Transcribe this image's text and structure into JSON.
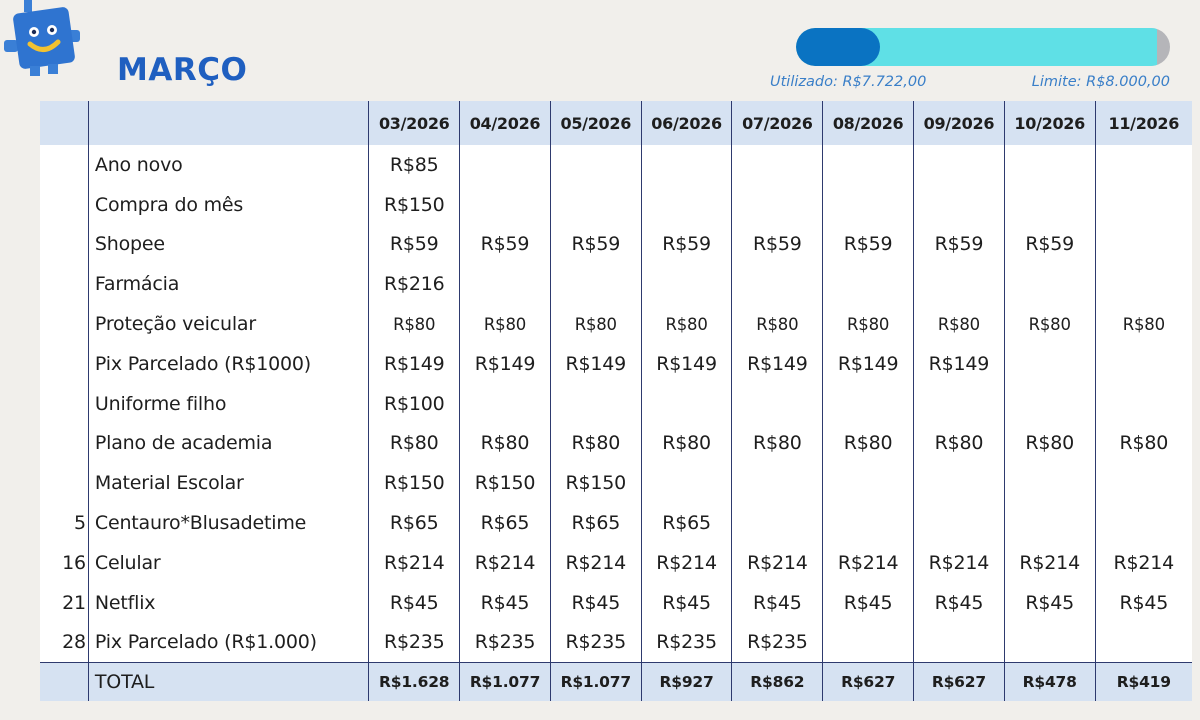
{
  "title": "MARÇO",
  "usage": {
    "used_label": "Utilizado: R$7.722,00",
    "limit_label": "Limite: R$8.000,00",
    "used_fraction": 0.965,
    "colors": {
      "track": "#b5b5b9",
      "fill": "#5fe0e6",
      "knob": "#0a73c2"
    }
  },
  "colors": {
    "title": "#1f5fc0",
    "header_bg": "#d6e2f2",
    "grid": "#2e3a6e"
  },
  "mascot_icon": "robot-mascot-icon",
  "table": {
    "columns": [
      "03/2026",
      "04/2026",
      "05/2026",
      "06/2026",
      "07/2026",
      "08/2026",
      "09/2026",
      "10/2026",
      "11/2026"
    ],
    "rows": [
      {
        "idx": "",
        "desc": "Ano novo",
        "cells": [
          "R$85",
          "",
          "",
          "",
          "",
          "",
          "",
          "",
          ""
        ]
      },
      {
        "idx": "",
        "desc": "Compra do mês",
        "cells": [
          "R$150",
          "",
          "",
          "",
          "",
          "",
          "",
          "",
          ""
        ]
      },
      {
        "idx": "",
        "desc": "Shopee",
        "cells": [
          "R$59",
          "R$59",
          "R$59",
          "R$59",
          "R$59",
          "R$59",
          "R$59",
          "R$59",
          ""
        ]
      },
      {
        "idx": "",
        "desc": "Farmácia",
        "cells": [
          "R$216",
          "",
          "",
          "",
          "",
          "",
          "",
          "",
          ""
        ]
      },
      {
        "idx": "",
        "desc": "Proteção veicular",
        "cells": [
          "R$80",
          "R$80",
          "R$80",
          "R$80",
          "R$80",
          "R$80",
          "R$80",
          "R$80",
          "R$80"
        ]
      },
      {
        "idx": "",
        "desc": "Pix Parcelado (R$1000)",
        "cells": [
          "R$149",
          "R$149",
          "R$149",
          "R$149",
          "R$149",
          "R$149",
          "R$149",
          "",
          ""
        ]
      },
      {
        "idx": "",
        "desc": "Uniforme filho",
        "cells": [
          "R$100",
          "",
          "",
          "",
          "",
          "",
          "",
          "",
          ""
        ]
      },
      {
        "idx": "",
        "desc": "Plano de academia",
        "cells": [
          "R$80",
          "R$80",
          "R$80",
          "R$80",
          "R$80",
          "R$80",
          "R$80",
          "R$80",
          "R$80"
        ]
      },
      {
        "idx": "",
        "desc": "Material Escolar",
        "cells": [
          "R$150",
          "R$150",
          "R$150",
          "",
          "",
          "",
          "",
          "",
          ""
        ]
      },
      {
        "idx": "5",
        "desc": "Centauro*Blusadetime",
        "cells": [
          "R$65",
          "R$65",
          "R$65",
          "R$65",
          "",
          "",
          "",
          "",
          ""
        ]
      },
      {
        "idx": "16",
        "desc": "Celular",
        "cells": [
          "R$214",
          "R$214",
          "R$214",
          "R$214",
          "R$214",
          "R$214",
          "R$214",
          "R$214",
          "R$214"
        ]
      },
      {
        "idx": "21",
        "desc": "Netflix",
        "cells": [
          "R$45",
          "R$45",
          "R$45",
          "R$45",
          "R$45",
          "R$45",
          "R$45",
          "R$45",
          "R$45"
        ]
      },
      {
        "idx": "28",
        "desc": "Pix Parcelado (R$1.000)",
        "cells": [
          "R$235",
          "R$235",
          "R$235",
          "R$235",
          "R$235",
          "",
          "",
          "",
          ""
        ]
      }
    ],
    "total": {
      "label": "TOTAL",
      "cells": [
        "R$1.628",
        "R$1.077",
        "R$1.077",
        "R$927",
        "R$862",
        "R$627",
        "R$627",
        "R$478",
        "R$419"
      ]
    }
  }
}
